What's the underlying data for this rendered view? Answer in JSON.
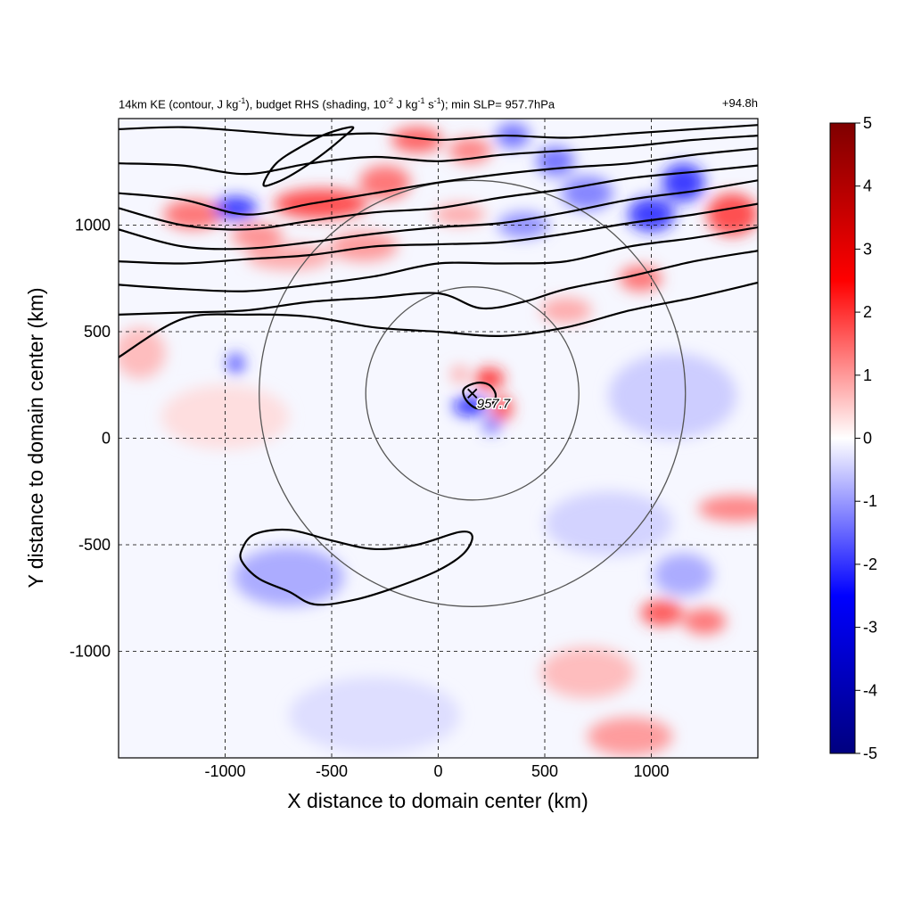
{
  "chart_data": {
    "type": "heatmap",
    "title_parts": [
      "14km KE (contour, J kg",
      "-1",
      "), budget RHS (shading, 10",
      "-2",
      " J kg",
      "-1",
      " s",
      "-1",
      "); min SLP= 957.7hPa"
    ],
    "time_label": "+94.8h",
    "xlabel": "X distance to domain center (km)",
    "ylabel": "Y distance to domain center (km)",
    "xlim": [
      -1500,
      1500
    ],
    "ylim": [
      -1500,
      1500
    ],
    "xticks": [
      -1000,
      -500,
      0,
      500,
      1000
    ],
    "yticks": [
      -1000,
      -500,
      0,
      500,
      1000
    ],
    "grid": true,
    "colorbar": {
      "range": [
        -5,
        5
      ],
      "ticks": [
        5,
        4,
        3,
        2,
        1,
        0,
        -1,
        -2,
        -3,
        -4,
        -5
      ],
      "colors": [
        "#00007f",
        "#0000ff",
        "#ffffff",
        "#ff0000",
        "#7f0000"
      ]
    },
    "storm_center": {
      "x": 160,
      "y": 210,
      "label": "957.7"
    },
    "range_rings_km": [
      500,
      1000
    ],
    "ke_contours": [
      {
        "name": "upper",
        "points": [
          [
            -1500,
            1450
          ],
          [
            -1200,
            1460
          ],
          [
            -900,
            1440
          ],
          [
            -600,
            1420
          ],
          [
            -300,
            1430
          ],
          [
            0,
            1400
          ],
          [
            300,
            1420
          ],
          [
            600,
            1410
          ],
          [
            900,
            1430
          ],
          [
            1200,
            1450
          ],
          [
            1500,
            1470
          ]
        ]
      },
      {
        "name": "upper",
        "points": [
          [
            -1500,
            1290
          ],
          [
            -1200,
            1280
          ],
          [
            -900,
            1240
          ],
          [
            -600,
            1290
          ],
          [
            -300,
            1320
          ],
          [
            0,
            1300
          ],
          [
            300,
            1330
          ],
          [
            600,
            1350
          ],
          [
            900,
            1370
          ],
          [
            1200,
            1400
          ],
          [
            1500,
            1420
          ]
        ]
      },
      {
        "name": "upper",
        "points": [
          [
            -1500,
            1150
          ],
          [
            -1200,
            1120
          ],
          [
            -900,
            1050
          ],
          [
            -600,
            1100
          ],
          [
            -300,
            1150
          ],
          [
            0,
            1200
          ],
          [
            300,
            1240
          ],
          [
            600,
            1270
          ],
          [
            900,
            1290
          ],
          [
            1200,
            1330
          ],
          [
            1500,
            1360
          ]
        ]
      },
      {
        "name": "upper",
        "points": [
          [
            -1500,
            1080
          ],
          [
            -1200,
            1000
          ],
          [
            -900,
            980
          ],
          [
            -600,
            1020
          ],
          [
            -300,
            1060
          ],
          [
            0,
            1080
          ],
          [
            300,
            1130
          ],
          [
            600,
            1170
          ],
          [
            900,
            1220
          ],
          [
            1200,
            1250
          ],
          [
            1500,
            1280
          ]
        ]
      },
      {
        "name": "upper",
        "points": [
          [
            -1500,
            980
          ],
          [
            -1200,
            900
          ],
          [
            -900,
            890
          ],
          [
            -600,
            920
          ],
          [
            -300,
            960
          ],
          [
            0,
            990
          ],
          [
            300,
            1010
          ],
          [
            600,
            1060
          ],
          [
            900,
            1120
          ],
          [
            1200,
            1160
          ],
          [
            1500,
            1210
          ]
        ]
      },
      {
        "name": "upper",
        "points": [
          [
            -1500,
            830
          ],
          [
            -1200,
            820
          ],
          [
            -900,
            840
          ],
          [
            -600,
            860
          ],
          [
            -300,
            900
          ],
          [
            0,
            910
          ],
          [
            300,
            920
          ],
          [
            600,
            960
          ],
          [
            900,
            1010
          ],
          [
            1200,
            1050
          ],
          [
            1500,
            1100
          ]
        ]
      },
      {
        "name": "upper",
        "points": [
          [
            -1500,
            720
          ],
          [
            -1200,
            700
          ],
          [
            -900,
            690
          ],
          [
            -600,
            720
          ],
          [
            -300,
            760
          ],
          [
            0,
            820
          ],
          [
            300,
            820
          ],
          [
            600,
            830
          ],
          [
            900,
            900
          ],
          [
            1200,
            940
          ],
          [
            1500,
            990
          ]
        ]
      },
      {
        "name": "upper",
        "points": [
          [
            -1500,
            580
          ],
          [
            -1200,
            590
          ],
          [
            -900,
            600
          ],
          [
            -600,
            640
          ],
          [
            -300,
            660
          ],
          [
            0,
            680
          ],
          [
            200,
            610
          ],
          [
            400,
            640
          ],
          [
            600,
            700
          ],
          [
            900,
            760
          ],
          [
            1200,
            830
          ],
          [
            1500,
            880
          ]
        ]
      },
      {
        "name": "upper",
        "points": [
          [
            -1500,
            380
          ],
          [
            -1200,
            560
          ],
          [
            -900,
            580
          ],
          [
            -600,
            570
          ],
          [
            -300,
            520
          ],
          [
            0,
            500
          ],
          [
            300,
            480
          ],
          [
            600,
            520
          ],
          [
            900,
            600
          ],
          [
            1200,
            660
          ],
          [
            1500,
            730
          ]
        ]
      }
    ],
    "ke_closed_contours": [
      {
        "name": "south-west blob",
        "points": [
          [
            -920,
            -520
          ],
          [
            -860,
            -450
          ],
          [
            -700,
            -430
          ],
          [
            -500,
            -480
          ],
          [
            -300,
            -520
          ],
          [
            -100,
            -500
          ],
          [
            100,
            -440
          ],
          [
            160,
            -460
          ],
          [
            120,
            -540
          ],
          [
            0,
            -620
          ],
          [
            -200,
            -700
          ],
          [
            -400,
            -760
          ],
          [
            -580,
            -780
          ],
          [
            -700,
            -720
          ],
          [
            -840,
            -660
          ],
          [
            -920,
            -580
          ]
        ]
      },
      {
        "name": "storm core",
        "points": [
          [
            120,
            230
          ],
          [
            180,
            260
          ],
          [
            240,
            250
          ],
          [
            270,
            200
          ],
          [
            240,
            150
          ],
          [
            180,
            140
          ],
          [
            130,
            180
          ]
        ]
      },
      {
        "name": "north-west blob",
        "points": [
          [
            -820,
            1190
          ],
          [
            -760,
            1290
          ],
          [
            -640,
            1370
          ],
          [
            -520,
            1430
          ],
          [
            -400,
            1460
          ],
          [
            -460,
            1400
          ],
          [
            -560,
            1320
          ],
          [
            -680,
            1240
          ],
          [
            -760,
            1200
          ]
        ]
      }
    ],
    "shading_anomalies": [
      {
        "x": -1150,
        "y": 1050,
        "v": 2.5,
        "rx": 140,
        "ry": 70
      },
      {
        "x": -950,
        "y": 1080,
        "v": -3.5,
        "rx": 100,
        "ry": 55
      },
      {
        "x": -550,
        "y": 1100,
        "v": 3.2,
        "rx": 220,
        "ry": 70
      },
      {
        "x": -250,
        "y": 1200,
        "v": 2.5,
        "rx": 120,
        "ry": 80
      },
      {
        "x": -850,
        "y": 950,
        "v": 2,
        "rx": 120,
        "ry": 60
      },
      {
        "x": -700,
        "y": 850,
        "v": 1.5,
        "rx": 200,
        "ry": 60
      },
      {
        "x": -350,
        "y": 900,
        "v": 1.8,
        "rx": 160,
        "ry": 70
      },
      {
        "x": -100,
        "y": 1400,
        "v": 2.8,
        "rx": 120,
        "ry": 60
      },
      {
        "x": 150,
        "y": 1350,
        "v": 2.2,
        "rx": 100,
        "ry": 60
      },
      {
        "x": 350,
        "y": 1420,
        "v": -2.5,
        "rx": 80,
        "ry": 60
      },
      {
        "x": 550,
        "y": 1300,
        "v": -2.5,
        "rx": 90,
        "ry": 70
      },
      {
        "x": 700,
        "y": 1150,
        "v": -2.2,
        "rx": 120,
        "ry": 80
      },
      {
        "x": 1000,
        "y": 1050,
        "v": -3.5,
        "rx": 110,
        "ry": 80
      },
      {
        "x": 1150,
        "y": 1200,
        "v": -3.5,
        "rx": 100,
        "ry": 90
      },
      {
        "x": 1380,
        "y": 1050,
        "v": 3.2,
        "rx": 120,
        "ry": 100
      },
      {
        "x": 950,
        "y": 750,
        "v": 2.5,
        "rx": 100,
        "ry": 60
      },
      {
        "x": 400,
        "y": 1000,
        "v": -2,
        "rx": 120,
        "ry": 60
      },
      {
        "x": 100,
        "y": 1050,
        "v": 1.5,
        "rx": 120,
        "ry": 50
      },
      {
        "x": -950,
        "y": 350,
        "v": -3,
        "rx": 40,
        "ry": 50
      },
      {
        "x": -1400,
        "y": 400,
        "v": 1.2,
        "rx": 120,
        "ry": 120
      },
      {
        "x": 240,
        "y": 280,
        "v": 3.5,
        "rx": 70,
        "ry": 50
      },
      {
        "x": 150,
        "y": 150,
        "v": -3.8,
        "rx": 80,
        "ry": 45
      },
      {
        "x": 300,
        "y": 140,
        "v": 3,
        "rx": 50,
        "ry": 60
      },
      {
        "x": 250,
        "y": 60,
        "v": -2.5,
        "rx": 40,
        "ry": 40
      },
      {
        "x": 100,
        "y": 300,
        "v": 1.5,
        "rx": 40,
        "ry": 40
      },
      {
        "x": 1400,
        "y": -330,
        "v": 2.2,
        "rx": 180,
        "ry": 60
      },
      {
        "x": 1050,
        "y": -820,
        "v": 3,
        "rx": 100,
        "ry": 60
      },
      {
        "x": 1250,
        "y": -860,
        "v": 2.5,
        "rx": 100,
        "ry": 60
      },
      {
        "x": 1150,
        "y": -640,
        "v": -1.5,
        "rx": 140,
        "ry": 100
      },
      {
        "x": -700,
        "y": -650,
        "v": -1.5,
        "rx": 260,
        "ry": 140
      },
      {
        "x": 900,
        "y": -1400,
        "v": 1.8,
        "rx": 200,
        "ry": 90
      },
      {
        "x": 700,
        "y": -1100,
        "v": 1.2,
        "rx": 220,
        "ry": 120
      },
      {
        "x": -300,
        "y": -1300,
        "v": -0.6,
        "rx": 400,
        "ry": 180
      },
      {
        "x": 1100,
        "y": 200,
        "v": -0.9,
        "rx": 300,
        "ry": 200
      },
      {
        "x": -1000,
        "y": 100,
        "v": 0.6,
        "rx": 300,
        "ry": 150
      },
      {
        "x": 800,
        "y": -400,
        "v": -0.8,
        "rx": 300,
        "ry": 150
      },
      {
        "x": 600,
        "y": 600,
        "v": 1.5,
        "rx": 120,
        "ry": 60
      }
    ]
  }
}
